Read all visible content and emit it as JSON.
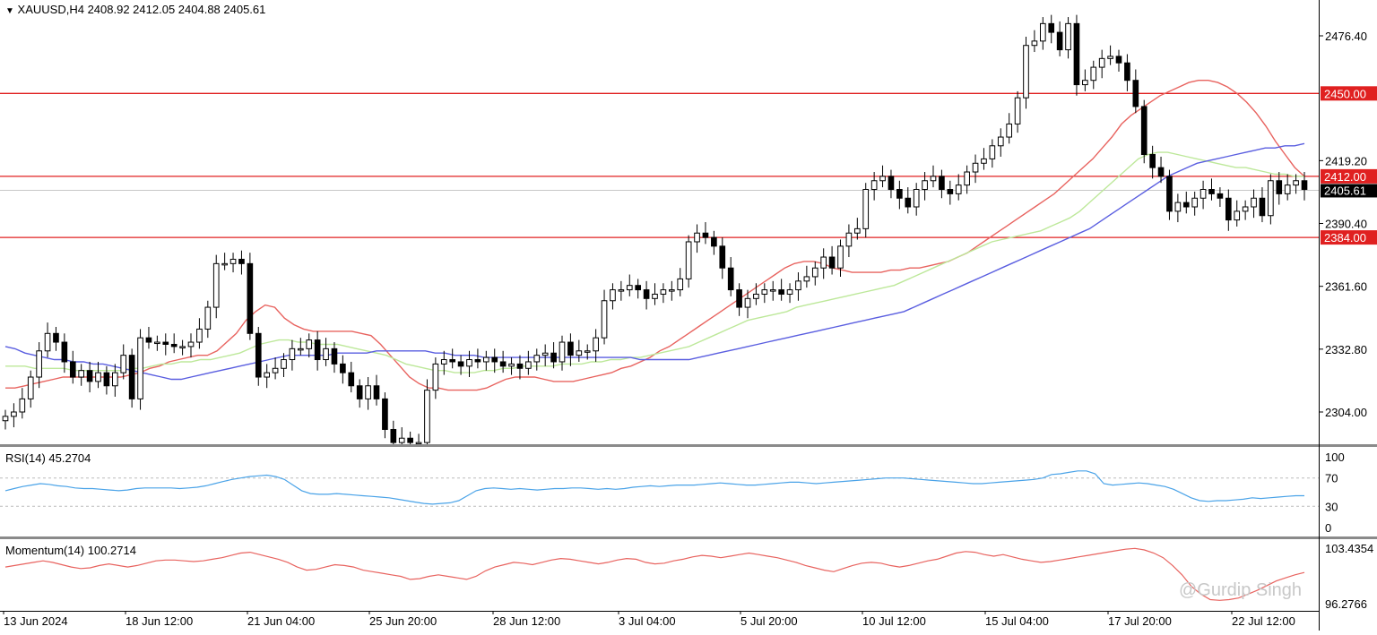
{
  "header": {
    "triangle": "▼",
    "symbol": "XAUUSD,H4",
    "ohlc": "2408.92 2412.05 2404.88 2405.61"
  },
  "rsi": {
    "title": "RSI(14) 45.2704",
    "levels": [
      "100",
      "70",
      "30",
      "0"
    ]
  },
  "momentum": {
    "title": "Momentum(14) 100.2714",
    "top": "103.4354",
    "bottom": "96.2766"
  },
  "watermark": "@Gurdip Singh",
  "chart_data": {
    "type": "candlestick",
    "price_ticks": [
      "2476.40",
      "2419.20",
      "2390.40",
      "2361.60",
      "2332.80",
      "2304.00"
    ],
    "horizontal_levels": [
      {
        "label": "2450.00",
        "value": 2450.0
      },
      {
        "label": "2412.00",
        "value": 2412.0
      },
      {
        "label": "2384.00",
        "value": 2384.0
      }
    ],
    "current_price": {
      "label": "2405.61",
      "value": 2405.61
    },
    "x_labels": [
      "13 Jun 2024",
      "18 Jun 12:00",
      "21 Jun 04:00",
      "25 Jun 20:00",
      "28 Jun 12:00",
      "3 Jul 04:00",
      "5 Jul 20:00",
      "10 Jul 12:00",
      "15 Jul 04:00",
      "17 Jul 20:00",
      "22 Jul 12:00"
    ],
    "closes": [
      2302,
      2304,
      2310,
      2320,
      2332,
      2340,
      2336,
      2327,
      2320,
      2323,
      2318,
      2322,
      2316,
      2322,
      2330,
      2310,
      2338,
      2336,
      2336,
      2335,
      2334,
      2334,
      2336,
      2342,
      2352,
      2372,
      2372,
      2374,
      2372,
      2340,
      2320,
      2322,
      2324,
      2328,
      2333,
      2333,
      2337,
      2328,
      2333,
      2326,
      2322,
      2316,
      2310,
      2316,
      2310,
      2296,
      2290,
      2292,
      2290,
      2290,
      2314,
      2326,
      2328,
      2327,
      2325,
      2328,
      2327,
      2329,
      2327,
      2325,
      2326,
      2324,
      2327,
      2330,
      2331,
      2327,
      2336,
      2330,
      2332,
      2332,
      2338,
      2355,
      2360,
      2360,
      2362,
      2360,
      2356,
      2358,
      2360,
      2360,
      2365,
      2382,
      2386,
      2384,
      2380,
      2370,
      2360,
      2352,
      2356,
      2358,
      2360,
      2360,
      2358,
      2360,
      2364,
      2366,
      2370,
      2375,
      2370,
      2380,
      2386,
      2388,
      2406,
      2410,
      2412,
      2406,
      2402,
      2398,
      2406,
      2410,
      2412,
      2406,
      2404,
      2408,
      2414,
      2418,
      2420,
      2426,
      2430,
      2436,
      2448,
      2472,
      2474,
      2482,
      2478,
      2470,
      2482,
      2454,
      2456,
      2462,
      2466,
      2467,
      2464,
      2456,
      2444,
      2422,
      2416,
      2412,
      2396,
      2400,
      2398,
      2402,
      2406,
      2404,
      2402,
      2392,
      2396,
      2398,
      2402,
      2394,
      2410,
      2404,
      2408,
      2410,
      2406
    ],
    "overlay_lines": [
      {
        "color": "#e8635f",
        "values": [
          2315,
          2315,
          2316,
          2317,
          2318,
          2319,
          2320,
          2320,
          2320,
          2320,
          2320,
          2320,
          2320,
          2321,
          2322,
          2324,
          2325,
          2327,
          2328,
          2329,
          2330,
          2330,
          2332,
          2336,
          2340,
          2346,
          2350,
          2353,
          2352,
          2347,
          2344,
          2342,
          2341,
          2341,
          2341,
          2341,
          2341,
          2340,
          2339,
          2335,
          2330,
          2325,
          2320,
          2317,
          2315,
          2315,
          2314,
          2314,
          2314,
          2314,
          2315,
          2317,
          2319,
          2320,
          2320,
          2320,
          2319,
          2318,
          2318,
          2318,
          2319,
          2320,
          2321,
          2322,
          2324,
          2325,
          2327,
          2329,
          2332,
          2334,
          2337,
          2340,
          2343,
          2346,
          2349,
          2352,
          2355,
          2358,
          2361,
          2364,
          2367,
          2370,
          2372,
          2373,
          2373,
          2372,
          2370,
          2369,
          2368,
          2368,
          2368,
          2368,
          2369,
          2369,
          2370,
          2370,
          2371,
          2372,
          2373,
          2375,
          2377,
          2380,
          2383,
          2386,
          2389,
          2392,
          2395,
          2398,
          2401,
          2404,
          2408,
          2412,
          2416,
          2420,
          2425,
          2430,
          2436,
          2440,
          2443,
          2446,
          2449,
          2451,
          2453,
          2455,
          2456,
          2456,
          2455,
          2453,
          2450,
          2446,
          2441,
          2435,
          2428,
          2422,
          2416,
          2412
        ]
      },
      {
        "color": "#bde89a",
        "values": [
          2325,
          2325,
          2325,
          2324,
          2324,
          2324,
          2324,
          2323,
          2323,
          2323,
          2323,
          2323,
          2323,
          2324,
          2324,
          2325,
          2326,
          2326,
          2327,
          2327,
          2328,
          2328,
          2329,
          2330,
          2331,
          2333,
          2335,
          2336,
          2337,
          2337,
          2336,
          2336,
          2335,
          2335,
          2335,
          2334,
          2333,
          2332,
          2331,
          2330,
          2328,
          2326,
          2325,
          2324,
          2323,
          2323,
          2322,
          2322,
          2322,
          2323,
          2323,
          2324,
          2324,
          2325,
          2325,
          2325,
          2325,
          2326,
          2326,
          2326,
          2327,
          2327,
          2328,
          2328,
          2329,
          2329,
          2330,
          2331,
          2332,
          2333,
          2334,
          2336,
          2338,
          2340,
          2342,
          2344,
          2346,
          2347,
          2348,
          2349,
          2350,
          2352,
          2353,
          2354,
          2355,
          2356,
          2357,
          2358,
          2359,
          2360,
          2361,
          2362,
          2364,
          2366,
          2368,
          2370,
          2372,
          2374,
          2376,
          2378,
          2380,
          2382,
          2383,
          2384,
          2385,
          2386,
          2387,
          2389,
          2391,
          2393,
          2396,
          2400,
          2404,
          2408,
          2412,
          2416,
          2420,
          2422,
          2423,
          2423,
          2422,
          2421,
          2420,
          2419,
          2418,
          2417,
          2416,
          2416,
          2415,
          2414,
          2413,
          2413,
          2412,
          2412
        ]
      },
      {
        "color": "#5a5ee0",
        "values": [
          2334,
          2333,
          2331,
          2330,
          2329,
          2328,
          2328,
          2327,
          2327,
          2326,
          2326,
          2325,
          2324,
          2323,
          2322,
          2321,
          2320,
          2319,
          2319,
          2320,
          2321,
          2322,
          2323,
          2324,
          2325,
          2326,
          2327,
          2328,
          2329,
          2330,
          2330,
          2330,
          2330,
          2330,
          2331,
          2331,
          2331,
          2331,
          2332,
          2332,
          2332,
          2332,
          2332,
          2332,
          2331,
          2331,
          2330,
          2330,
          2330,
          2329,
          2329,
          2329,
          2329,
          2329,
          2329,
          2329,
          2329,
          2329,
          2329,
          2329,
          2329,
          2329,
          2329,
          2329,
          2329,
          2328,
          2328,
          2328,
          2328,
          2328,
          2328,
          2329,
          2330,
          2331,
          2332,
          2333,
          2334,
          2335,
          2336,
          2337,
          2338,
          2339,
          2340,
          2341,
          2342,
          2343,
          2344,
          2345,
          2346,
          2347,
          2348,
          2349,
          2350,
          2352,
          2354,
          2356,
          2358,
          2360,
          2362,
          2364,
          2366,
          2368,
          2370,
          2372,
          2374,
          2376,
          2378,
          2380,
          2382,
          2384,
          2386,
          2388,
          2391,
          2394,
          2397,
          2400,
          2403,
          2406,
          2409,
          2412,
          2414,
          2416,
          2418,
          2419,
          2420,
          2421,
          2422,
          2423,
          2424,
          2425,
          2425,
          2426,
          2426,
          2427
        ]
      }
    ],
    "rsi_values": [
      52,
      55,
      58,
      60,
      62,
      61,
      59,
      58,
      56,
      55,
      55,
      54,
      53,
      52,
      53,
      55,
      56,
      56,
      56,
      56,
      55,
      56,
      57,
      59,
      62,
      65,
      68,
      70,
      72,
      73,
      74,
      72,
      68,
      60,
      52,
      48,
      47,
      47,
      48,
      47,
      46,
      45,
      44,
      43,
      42,
      40,
      38,
      36,
      34,
      33,
      34,
      35,
      38,
      45,
      52,
      55,
      56,
      55,
      54,
      55,
      54,
      53,
      54,
      55,
      55,
      56,
      56,
      55,
      54,
      55,
      54,
      55,
      57,
      58,
      59,
      58,
      59,
      60,
      60,
      60,
      61,
      62,
      63,
      62,
      61,
      60,
      60,
      61,
      62,
      63,
      64,
      64,
      63,
      62,
      63,
      64,
      65,
      66,
      67,
      68,
      69,
      70,
      70,
      70,
      69,
      68,
      67,
      66,
      65,
      64,
      63,
      62,
      62,
      63,
      64,
      65,
      66,
      67,
      68,
      70,
      75,
      76,
      78,
      80,
      80,
      76,
      62,
      60,
      61,
      62,
      63,
      62,
      60,
      58,
      54,
      48,
      42,
      38,
      37,
      38,
      38,
      39,
      40,
      42,
      41,
      42,
      43,
      44,
      45,
      45
    ],
    "momentum_values": [
      101.0,
      101.2,
      101.4,
      101.6,
      101.8,
      101.6,
      101.3,
      101.0,
      100.8,
      100.9,
      101.2,
      101.4,
      101.2,
      101.0,
      101.2,
      101.5,
      101.8,
      101.9,
      101.9,
      101.8,
      101.7,
      101.8,
      102.0,
      102.2,
      102.5,
      102.8,
      102.9,
      102.6,
      102.3,
      102.0,
      101.6,
      101.0,
      100.6,
      100.7,
      101.0,
      101.3,
      101.2,
      101.0,
      100.6,
      100.4,
      100.2,
      100.0,
      99.8,
      99.4,
      99.5,
      99.8,
      100.0,
      99.8,
      99.6,
      99.4,
      99.8,
      100.5,
      101.0,
      101.3,
      101.6,
      101.5,
      101.3,
      101.6,
      101.9,
      102.1,
      102.0,
      101.8,
      101.6,
      101.4,
      101.6,
      101.9,
      102.1,
      102.0,
      101.6,
      101.4,
      101.5,
      101.8,
      102.0,
      102.3,
      102.5,
      102.4,
      102.2,
      102.4,
      102.6,
      102.8,
      102.6,
      102.4,
      102.2,
      101.9,
      101.6,
      101.2,
      100.9,
      100.6,
      100.4,
      100.8,
      101.2,
      101.5,
      101.6,
      101.5,
      101.2,
      101.0,
      101.2,
      101.5,
      101.8,
      102.0,
      102.4,
      102.8,
      103.0,
      102.9,
      102.6,
      102.4,
      102.6,
      102.3,
      102.0,
      101.8,
      101.6,
      101.7,
      101.9,
      102.1,
      102.3,
      102.5,
      102.7,
      102.9,
      103.1,
      103.3,
      103.4,
      103.2,
      102.8,
      102.2,
      101.2,
      100.0,
      98.5,
      97.5,
      96.8,
      96.7,
      96.8,
      97.0,
      97.5,
      98.0,
      98.6,
      99.2,
      99.6,
      100.0,
      100.3
    ]
  }
}
